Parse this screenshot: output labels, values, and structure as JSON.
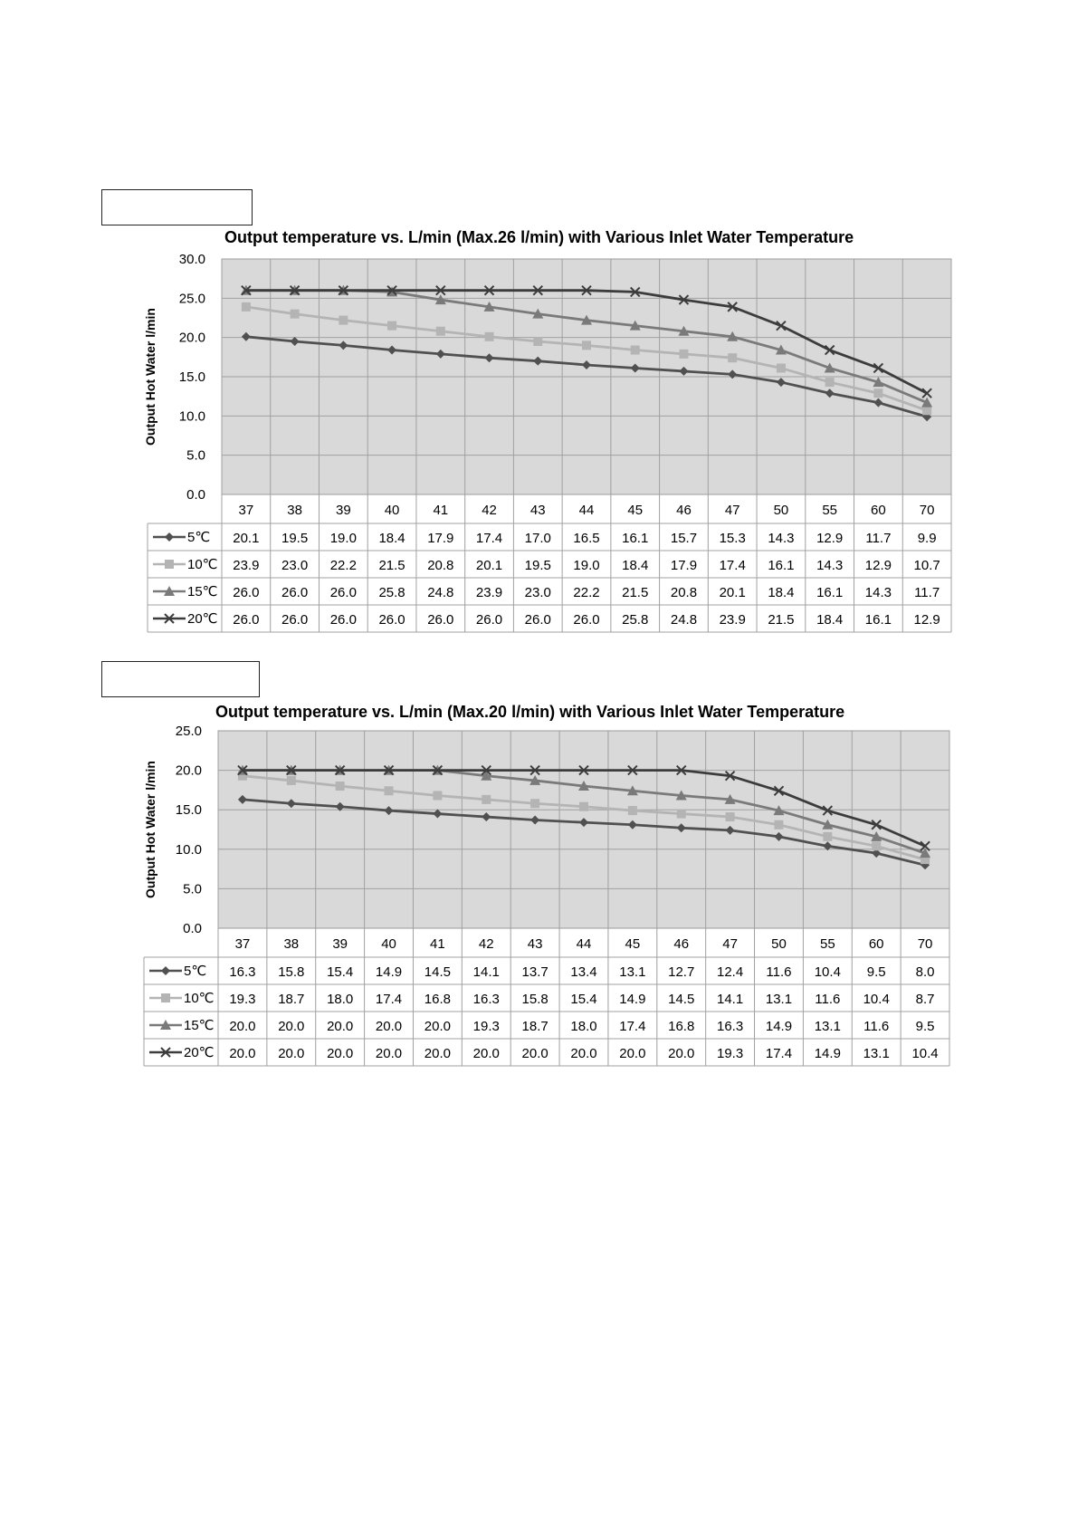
{
  "chart_data": [
    {
      "type": "line",
      "title": "Output temperature vs. L/min (Max.26 l/min) with Various Inlet Water Temperature",
      "ylabel": "Output Hot Water l/min",
      "xlabel": "",
      "ylim": [
        0,
        30
      ],
      "ytick_labels": [
        "0.0",
        "5.0",
        "10.0",
        "15.0",
        "20.0",
        "25.0",
        "30.0"
      ],
      "grid": true,
      "legend": "data-table-left",
      "categories": [
        "37",
        "38",
        "39",
        "40",
        "41",
        "42",
        "43",
        "44",
        "45",
        "46",
        "47",
        "50",
        "55",
        "60",
        "70"
      ],
      "series": [
        {
          "name": "5℃",
          "marker": "diamond",
          "color": "#505050",
          "labels": [
            "20.1",
            "19.5",
            "19.0",
            "18.4",
            "17.9",
            "17.4",
            "17.0",
            "16.5",
            "16.1",
            "15.7",
            "15.3",
            "14.3",
            "12.9",
            "11.7",
            "9.9"
          ],
          "values": [
            20.1,
            19.5,
            19.0,
            18.4,
            17.9,
            17.4,
            17.0,
            16.5,
            16.1,
            15.7,
            15.3,
            14.3,
            12.9,
            11.7,
            9.9
          ]
        },
        {
          "name": "10℃",
          "marker": "square",
          "color": "#b4b4b4",
          "labels": [
            "23.9",
            "23.0",
            "22.2",
            "21.5",
            "20.8",
            "20.1",
            "19.5",
            "19.0",
            "18.4",
            "17.9",
            "17.4",
            "16.1",
            "14.3",
            "12.9",
            "10.7"
          ],
          "values": [
            23.9,
            23.0,
            22.2,
            21.5,
            20.8,
            20.1,
            19.5,
            19.0,
            18.4,
            17.9,
            17.4,
            16.1,
            14.3,
            12.9,
            10.7
          ]
        },
        {
          "name": "15℃",
          "marker": "triangle",
          "color": "#7a7a7a",
          "labels": [
            "26.0",
            "26.0",
            "26.0",
            "25.8",
            "24.8",
            "23.9",
            "23.0",
            "22.2",
            "21.5",
            "20.8",
            "20.1",
            "18.4",
            "16.1",
            "14.3",
            "11.7"
          ],
          "values": [
            26.0,
            26.0,
            26.0,
            25.8,
            24.8,
            23.9,
            23.0,
            22.2,
            21.5,
            20.8,
            20.1,
            18.4,
            16.1,
            14.3,
            11.7
          ]
        },
        {
          "name": "20℃",
          "marker": "cross",
          "color": "#3c3c3c",
          "labels": [
            "26.0",
            "26.0",
            "26.0",
            "26.0",
            "26.0",
            "26.0",
            "26.0",
            "26.0",
            "25.8",
            "24.8",
            "23.9",
            "21.5",
            "18.4",
            "16.1",
            "12.9"
          ],
          "values": [
            26.0,
            26.0,
            26.0,
            26.0,
            26.0,
            26.0,
            26.0,
            26.0,
            25.8,
            24.8,
            23.9,
            21.5,
            18.4,
            16.1,
            12.9
          ]
        }
      ]
    },
    {
      "type": "line",
      "title": "Output temperature vs. L/min (Max.20 l/min) with Various Inlet Water Temperature",
      "ylabel": "Output Hot Water l/min",
      "xlabel": "",
      "ylim": [
        0,
        25
      ],
      "ytick_labels": [
        "0.0",
        "5.0",
        "10.0",
        "15.0",
        "20.0",
        "25.0"
      ],
      "grid": true,
      "legend": "data-table-left",
      "categories": [
        "37",
        "38",
        "39",
        "40",
        "41",
        "42",
        "43",
        "44",
        "45",
        "46",
        "47",
        "50",
        "55",
        "60",
        "70"
      ],
      "series": [
        {
          "name": "5℃",
          "marker": "diamond",
          "color": "#505050",
          "labels": [
            "16.3",
            "15.8",
            "15.4",
            "14.9",
            "14.5",
            "14.1",
            "13.7",
            "13.4",
            "13.1",
            "12.7",
            "12.4",
            "11.6",
            "10.4",
            "9.5",
            "8.0"
          ],
          "values": [
            16.3,
            15.8,
            15.4,
            14.9,
            14.5,
            14.1,
            13.7,
            13.4,
            13.1,
            12.7,
            12.4,
            11.6,
            10.4,
            9.5,
            8.0
          ]
        },
        {
          "name": "10℃",
          "marker": "square",
          "color": "#b4b4b4",
          "labels": [
            "19.3",
            "18.7",
            "18.0",
            "17.4",
            "16.8",
            "16.3",
            "15.8",
            "15.4",
            "14.9",
            "14.5",
            "14.1",
            "13.1",
            "11.6",
            "10.4",
            "8.7"
          ],
          "values": [
            19.3,
            18.7,
            18.0,
            17.4,
            16.8,
            16.3,
            15.8,
            15.4,
            14.9,
            14.5,
            14.1,
            13.1,
            11.6,
            10.4,
            8.7
          ]
        },
        {
          "name": "15℃",
          "marker": "triangle",
          "color": "#7a7a7a",
          "labels": [
            "20.0",
            "20.0",
            "20.0",
            "20.0",
            "20.0",
            "19.3",
            "18.7",
            "18.0",
            "17.4",
            "16.8",
            "16.3",
            "14.9",
            "13.1",
            "11.6",
            "9.5"
          ],
          "values": [
            20.0,
            20.0,
            20.0,
            20.0,
            20.0,
            19.3,
            18.7,
            18.0,
            17.4,
            16.8,
            16.3,
            14.9,
            13.1,
            11.6,
            9.5
          ]
        },
        {
          "name": "20℃",
          "marker": "cross",
          "color": "#3c3c3c",
          "labels": [
            "20.0",
            "20.0",
            "20.0",
            "20.0",
            "20.0",
            "20.0",
            "20.0",
            "20.0",
            "20.0",
            "20.0",
            "19.3",
            "17.4",
            "14.9",
            "13.1",
            "10.4"
          ],
          "values": [
            20.0,
            20.0,
            20.0,
            20.0,
            20.0,
            20.0,
            20.0,
            20.0,
            20.0,
            20.0,
            19.3,
            17.4,
            14.9,
            13.1,
            10.4
          ]
        }
      ]
    }
  ]
}
